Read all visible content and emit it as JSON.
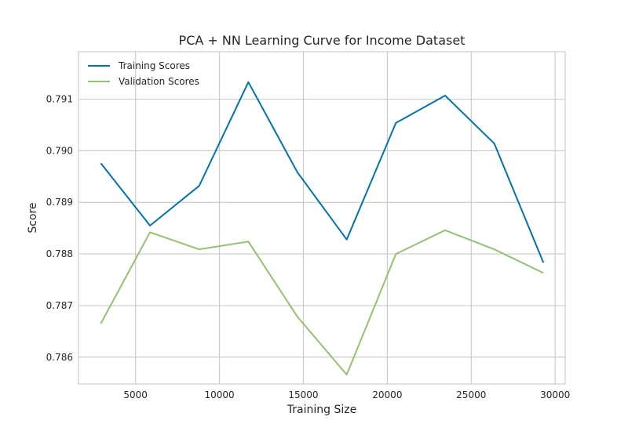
{
  "chart_data": {
    "type": "line",
    "title": "PCA + NN Learning Curve for Income Dataset",
    "xlabel": "Training Size",
    "ylabel": "Score",
    "xlim": [
      1600,
      30600
    ],
    "ylim": [
      0.78548,
      0.79192
    ],
    "xticks": [
      5000,
      10000,
      15000,
      20000,
      25000,
      30000
    ],
    "xtick_labels": [
      "5000",
      "10000",
      "15000",
      "20000",
      "25000",
      "30000"
    ],
    "yticks": [
      0.786,
      0.787,
      0.788,
      0.789,
      0.79,
      0.791
    ],
    "ytick_labels": [
      "0.786",
      "0.787",
      "0.788",
      "0.789",
      "0.790",
      "0.791"
    ],
    "grid": true,
    "legend": "top-left",
    "x": [
      2930,
      5861,
      8791,
      11722,
      14652,
      17583,
      20513,
      23444,
      26374,
      29305
    ],
    "series": [
      {
        "name": "Training Scores",
        "color": "#0072b2",
        "values": [
          0.78976,
          0.78855,
          0.78932,
          0.79133,
          0.78958,
          0.78828,
          0.79054,
          0.79107,
          0.79014,
          0.78783
        ]
      },
      {
        "name": "Validation Scores",
        "color": "#94c270",
        "values": [
          0.78665,
          0.78842,
          0.78809,
          0.78824,
          0.78678,
          0.78566,
          0.788,
          0.78846,
          0.78809,
          0.78763
        ]
      }
    ]
  }
}
